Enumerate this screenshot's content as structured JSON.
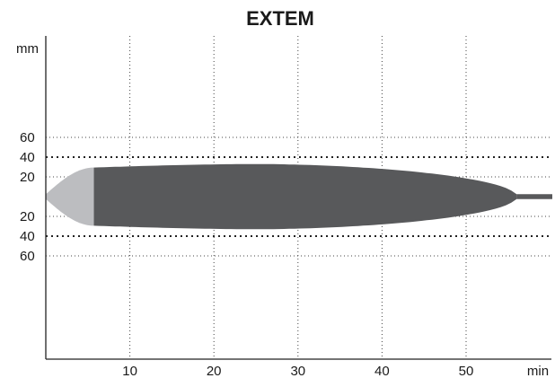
{
  "chart_data": {
    "type": "area",
    "title": "EXTEM",
    "y_unit": "mm",
    "x_unit": "min",
    "x_ticks": [
      10,
      20,
      30,
      40,
      50
    ],
    "y_ticks_upper": [
      60,
      40,
      20
    ],
    "y_ticks_lower": [
      20,
      40,
      60
    ],
    "x_range": [
      0,
      61
    ],
    "y_range": [
      -70,
      70
    ],
    "emphasized_gridlines": [
      40,
      -40
    ],
    "grid": true,
    "clot_profile": {
      "clotting_time_min": 5.7,
      "time_to_max_amplitude_min": 26,
      "max_amplitude_mm": 33,
      "lysis_end_min": 56,
      "tail_amplitude_mm": 2.5
    },
    "series_colors": {
      "clotting_phase": "#bcbdc0",
      "main_trace": "#58595b",
      "grid": "#444444",
      "axis": "#222222"
    }
  }
}
